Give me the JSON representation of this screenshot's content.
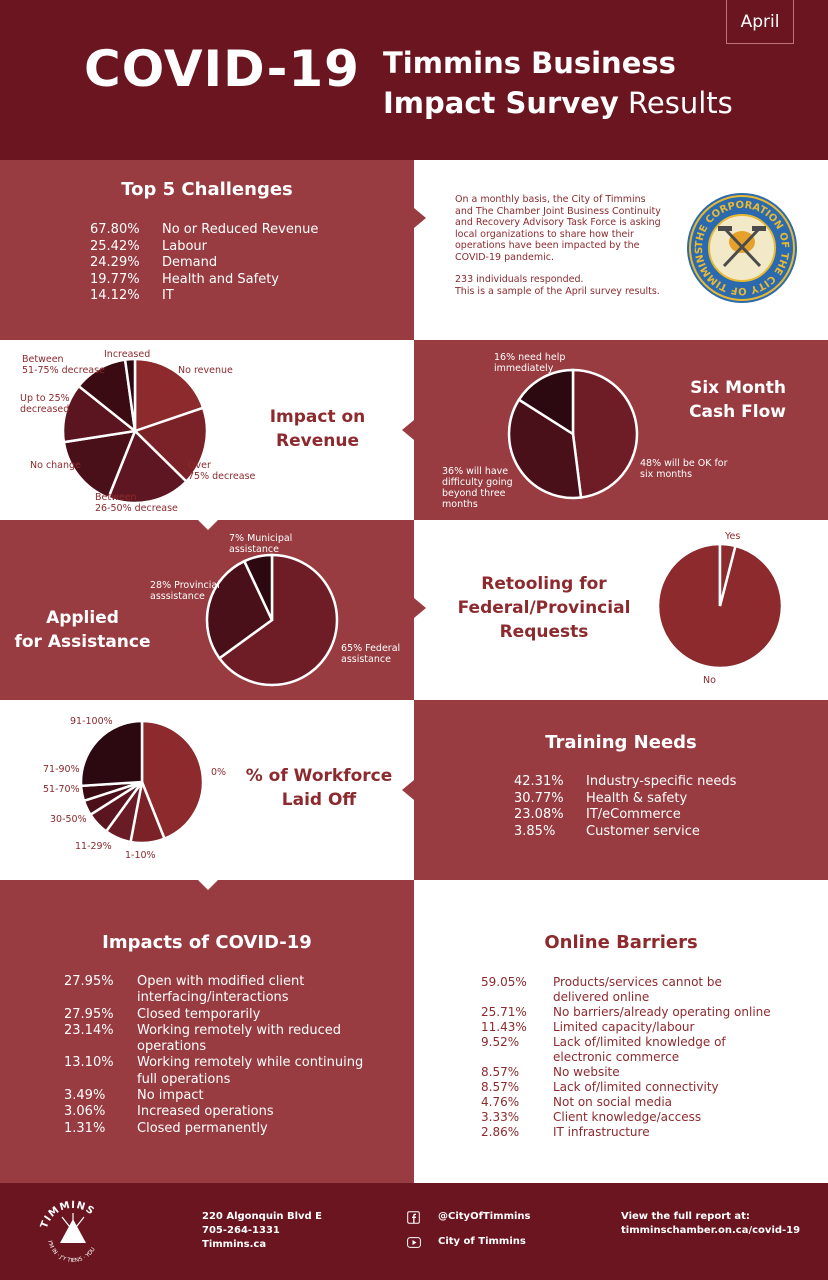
{
  "header": {
    "month": "April",
    "covid": "COVID-19",
    "title_line1": "Timmins Business",
    "title_line2_bold": "Impact Survey",
    "title_line2_light": "Results"
  },
  "top5": {
    "title": "Top 5 Challenges",
    "items": [
      {
        "pct": "67.80%",
        "label": "No or Reduced Revenue"
      },
      {
        "pct": "25.42%",
        "label": "Labour"
      },
      {
        "pct": "24.29%",
        "label": "Demand"
      },
      {
        "pct": "19.77%",
        "label": "Health and Safety"
      },
      {
        "pct": "14.12%",
        "label": "IT"
      }
    ]
  },
  "intro": {
    "line1": "On a monthly basis, the City of Timmins",
    "line2": "and The Chamber Joint Business Continuity",
    "line3": "and Recovery Advisory Task Force is asking",
    "line4": "local organizations to share how their",
    "line5": "operations have been impacted by the",
    "line6": "COVID-19 pandemic.",
    "responded": "233 individuals responded.",
    "sample": "This is a sample of the April survey results.",
    "seal_text": "THE CORPORATION OF THE CITY OF TIMMINS"
  },
  "revenue": {
    "title_line1": "Impact on",
    "title_line2": "Revenue",
    "labels": {
      "increased": "Increased",
      "no_revenue": "No revenue",
      "over75_1": "Over",
      "over75_2": "75% decrease",
      "b2650_1": "Between",
      "b2650_2": "26-50% decrease",
      "no_change": "No change",
      "upto25_1": "Up to 25%",
      "upto25_2": "decreased",
      "b5175_1": "Between",
      "b5175_2": "51-75% decrease"
    }
  },
  "cashflow": {
    "title_line1": "Six Month",
    "title_line2": "Cash Flow",
    "labels": {
      "help1": "16% need help",
      "help2": "immediately",
      "ok1": "48% will be OK for",
      "ok2": "six months",
      "diff1": "36% will have",
      "diff2": "difficulty going",
      "diff3": "beyond three",
      "diff4": "months"
    }
  },
  "assistance": {
    "title_line1": "Applied",
    "title_line2": "for Assistance",
    "labels": {
      "muni1": "7% Municipal",
      "muni2": "assistance",
      "prov1": "28% Provincial",
      "prov2": "asssistance",
      "fed1": "65% Federal",
      "fed2": "assistance"
    }
  },
  "retooling": {
    "title_line1": "Retooling for",
    "title_line2": "Federal/Provincial",
    "title_line3": "Requests",
    "yes": "Yes",
    "no": "No"
  },
  "laidoff": {
    "title_line1": "% of Workforce",
    "title_line2": "Laid Off",
    "labels": {
      "p91": "91-100%",
      "p0": "0%",
      "p71": "71-90%",
      "p51": "51-70%",
      "p30": "30-50%",
      "p11": "11-29%",
      "p1": "1-10%"
    }
  },
  "training": {
    "title": "Training Needs",
    "items": [
      {
        "pct": "42.31%",
        "label": "Industry-specific needs"
      },
      {
        "pct": "30.77%",
        "label": "Health & safety"
      },
      {
        "pct": "23.08%",
        "label": "IT/eCommerce"
      },
      {
        "pct": "3.85%",
        "label": "Customer service"
      }
    ]
  },
  "impacts": {
    "title": "Impacts of COVID-19",
    "items": [
      {
        "pct": "27.95%",
        "l1": "Open with modified client",
        "l2": "interfacing/interactions"
      },
      {
        "pct": "27.95%",
        "l1": "Closed temporarily",
        "l2": ""
      },
      {
        "pct": "23.14%",
        "l1": "Working remotely with reduced",
        "l2": "operations"
      },
      {
        "pct": "13.10%",
        "l1": "Working remotely while continuing",
        "l2": "full operations"
      },
      {
        "pct": "3.49%",
        "l1": "No impact",
        "l2": ""
      },
      {
        "pct": "3.06%",
        "l1": "Increased operations",
        "l2": ""
      },
      {
        "pct": "1.31%",
        "l1": "Closed permanently",
        "l2": ""
      }
    ]
  },
  "barriers": {
    "title": "Online Barriers",
    "items": [
      {
        "pct": "59.05%",
        "l1": "Products/services cannot be",
        "l2": "delivered online"
      },
      {
        "pct": "25.71%",
        "l1": "No barriers/already operating online",
        "l2": ""
      },
      {
        "pct": "11.43%",
        "l1": "Limited capacity/labour",
        "l2": ""
      },
      {
        "pct": "9.52%",
        "l1": "Lack of/limited knowledge of",
        "l2": "electronic commerce"
      },
      {
        "pct": "8.57%",
        "l1": "No website",
        "l2": ""
      },
      {
        "pct": "8.57%",
        "l1": "Lack of/limited connectivity",
        "l2": ""
      },
      {
        "pct": "4.76%",
        "l1": "Not on social media",
        "l2": ""
      },
      {
        "pct": "3.33%",
        "l1": "Client knowledge/access",
        "l2": ""
      },
      {
        "pct": "2.86%",
        "l1": "IT infrastructure",
        "l2": ""
      }
    ]
  },
  "footer": {
    "logo_text": "TIMMINS",
    "logo_tagline": "I'M IN · J'Y TIENS · YOU",
    "address": "220 Algonquin Blvd E",
    "phone": "705-264-1331",
    "site": "Timmins.ca",
    "facebook": "@CityOfTimmins",
    "youtube": "City of Timmins",
    "report_label": "View the full report at:",
    "report_url": "timminschamber.on.ca/covid-19"
  },
  "colors": {
    "dark": "#6a1520",
    "mid": "#983c41",
    "accent": "#8c2a2e",
    "pie_dark": "#340a10",
    "pie_mid": "#5a1520",
    "pie_red": "#8c2a2e"
  },
  "chart_data": [
    {
      "type": "pie",
      "title": "Impact on Revenue",
      "categories": [
        "No revenue",
        "Over 75% decrease",
        "Between 26-50% decrease",
        "No change",
        "Up to 25% decreased",
        "Between 51-75% decrease",
        "Increased"
      ],
      "values": [
        18,
        16,
        17,
        15,
        12,
        11,
        2
      ]
    },
    {
      "type": "pie",
      "title": "Six Month Cash Flow",
      "categories": [
        "48% will be OK for six months",
        "36% will have difficulty going beyond three months",
        "16% need help immediately"
      ],
      "values": [
        48,
        36,
        16
      ]
    },
    {
      "type": "pie",
      "title": "Applied for Assistance",
      "categories": [
        "65% Federal assistance",
        "28% Provincial asssistance",
        "7% Municipal assistance"
      ],
      "values": [
        65,
        28,
        7
      ]
    },
    {
      "type": "pie",
      "title": "Retooling for Federal/Provincial Requests",
      "categories": [
        "No",
        "Yes"
      ],
      "values": [
        96,
        4
      ]
    },
    {
      "type": "pie",
      "title": "% of Workforce Laid Off",
      "categories": [
        "0%",
        "1-10%",
        "11-29%",
        "30-50%",
        "51-70%",
        "71-90%",
        "91-100%"
      ],
      "values": [
        44,
        9,
        7,
        6,
        4,
        4,
        26
      ]
    }
  ]
}
